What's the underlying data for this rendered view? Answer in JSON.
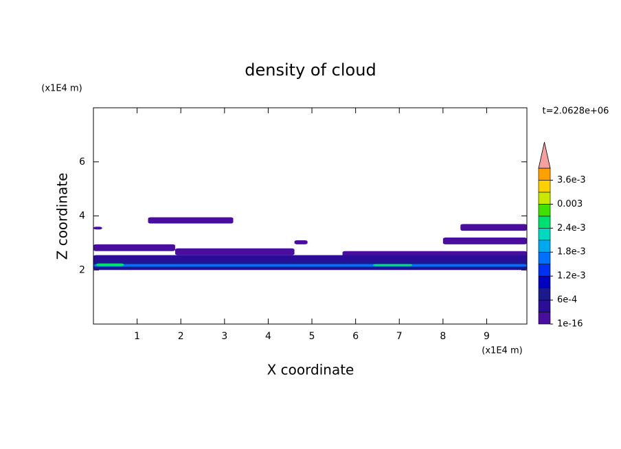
{
  "chart_data": {
    "type": "contour",
    "title": "density of cloud",
    "x_label": "X coordinate",
    "y_label": "Z coordinate",
    "x_unit": "(x1E4 m)",
    "y_unit": "(x1E4 m)",
    "time_label": "t=2.0628e+06",
    "xlim": [
      0,
      9.92
    ],
    "ylim": [
      0,
      8
    ],
    "xticks": [
      1,
      2,
      3,
      4,
      5,
      6,
      7,
      8,
      9
    ],
    "yticks": [
      2,
      4,
      6
    ],
    "colorbar": {
      "levels": [
        1e-16,
        0.0003,
        0.0006,
        0.0009,
        0.0012,
        0.0015,
        0.0018,
        0.0021,
        0.0024,
        0.0027,
        0.003,
        0.0033,
        0.0036,
        0.0039
      ],
      "colors": [
        "#4a0e9e",
        "#2a0e98",
        "#1a1a8c",
        "#0000c0",
        "#0030f0",
        "#0070ff",
        "#00a8f0",
        "#00d8c0",
        "#00e070",
        "#40e000",
        "#c8e800",
        "#ffd000",
        "#ffa000",
        "#ff6000",
        "#ff1800"
      ],
      "extend_color": "#f4a0a0",
      "ticks": [
        1e-16,
        {
          "value": 0.0006,
          "label": "6e-4"
        },
        {
          "value": 0.0012,
          "label": "1.2e-3"
        },
        {
          "value": 0.0018,
          "label": "1.8e-3"
        },
        {
          "value": 0.0024,
          "label": "2.4e-3"
        },
        0.003,
        {
          "value": 0.0036,
          "label": "3.6e-3"
        }
      ]
    },
    "regions": [
      {
        "x0": 1.25,
        "x1": 3.2,
        "z0": 3.72,
        "z1": 3.95,
        "value": 0.0001
      },
      {
        "x0": 0,
        "x1": 0.2,
        "z0": 3.5,
        "z1": 3.6,
        "value": 0.0001
      },
      {
        "x0": 8.4,
        "x1": 9.92,
        "z0": 3.45,
        "z1": 3.7,
        "value": 0.0001
      },
      {
        "x0": 4.6,
        "x1": 4.9,
        "z0": 2.95,
        "z1": 3.1,
        "value": 0.0001
      },
      {
        "x0": 8.0,
        "x1": 9.92,
        "z0": 2.95,
        "z1": 3.2,
        "value": 0.0001
      },
      {
        "x0": 0,
        "x1": 1.87,
        "z0": 2.7,
        "z1": 2.95,
        "value": 0.0001
      },
      {
        "x0": 1.87,
        "x1": 4.6,
        "z0": 2.55,
        "z1": 2.8,
        "value": 0.0001
      },
      {
        "x0": 5.7,
        "x1": 9.92,
        "z0": 2.4,
        "z1": 2.7,
        "value": 0.0001
      },
      {
        "x0": 0,
        "x1": 9.92,
        "z0": 2.0,
        "z1": 2.55,
        "value": 0.0004
      },
      {
        "x0": 0,
        "x1": 9.92,
        "z0": 2.05,
        "z1": 2.3,
        "value": 0.0008
      },
      {
        "x0": 0,
        "x1": 9.92,
        "z0": 2.12,
        "z1": 2.22,
        "value": 0.0016
      },
      {
        "x0": 0.06,
        "x1": 0.7,
        "z0": 2.14,
        "z1": 2.24,
        "value": 0.0025
      },
      {
        "x0": 6.4,
        "x1": 7.3,
        "z0": 2.14,
        "z1": 2.22,
        "value": 0.0026
      }
    ]
  }
}
